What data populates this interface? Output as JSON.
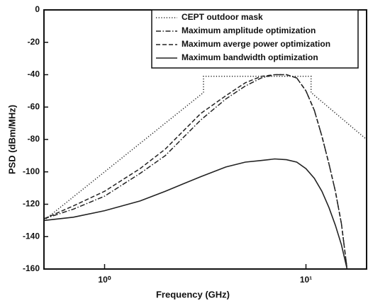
{
  "chart_data": {
    "type": "line",
    "xlabel": "Frequency (GHz)",
    "ylabel": "PSD (dBm/MHz)",
    "xscale": "log",
    "xlim": [
      0.5,
      20
    ],
    "ylim": [
      -160,
      0
    ],
    "xticks": [
      {
        "value": 1,
        "label": "10⁰"
      },
      {
        "value": 10,
        "label": "10¹"
      }
    ],
    "yticks": [
      0,
      -20,
      -40,
      -60,
      -80,
      -100,
      -120,
      -140,
      -160
    ],
    "legend": "upper right",
    "series": [
      {
        "name": "CEPT outdoor mask",
        "color": "#222222",
        "linestyle": "dotted",
        "x": [
          0.5,
          3.1,
          3.1,
          10.6,
          10.6,
          20
        ],
        "values": [
          -130,
          -51,
          -41,
          -41,
          -51,
          -80
        ]
      },
      {
        "name": "Maximum amplitude optimization",
        "color": "#222222",
        "linestyle": "dashdot",
        "x": [
          0.5,
          0.7,
          1,
          1.5,
          2,
          3,
          4,
          5,
          6,
          7,
          8,
          9,
          10,
          11,
          12,
          13,
          14,
          15,
          16
        ],
        "values": [
          -129,
          -123,
          -115,
          -101,
          -90,
          -68,
          -55,
          -47,
          -42,
          -40,
          -40,
          -42,
          -50,
          -62,
          -78,
          -95,
          -112,
          -132,
          -160
        ]
      },
      {
        "name": "Maximum averge power optimization",
        "color": "#222222",
        "linestyle": "dashed",
        "x": [
          0.5,
          0.7,
          1,
          1.5,
          2,
          3,
          4,
          5,
          6,
          7,
          8,
          9,
          10,
          11,
          12,
          13,
          14,
          15,
          16
        ],
        "values": [
          -129,
          -121,
          -112,
          -98,
          -86,
          -64,
          -53,
          -45,
          -41,
          -40,
          -40,
          -42,
          -50,
          -62,
          -78,
          -95,
          -112,
          -132,
          -160
        ]
      },
      {
        "name": "Maximum bandwidth optimization",
        "color": "#222222",
        "linestyle": "solid",
        "x": [
          0.5,
          0.7,
          1,
          1.5,
          2,
          3,
          4,
          5,
          6,
          7,
          8,
          9,
          10,
          11,
          12,
          13,
          14,
          15,
          16
        ],
        "values": [
          -130,
          -128,
          -124,
          -118,
          -112,
          -103,
          -97,
          -94,
          -93,
          -92,
          -92.5,
          -94,
          -98,
          -104,
          -112,
          -122,
          -133,
          -145,
          -160
        ]
      }
    ]
  }
}
